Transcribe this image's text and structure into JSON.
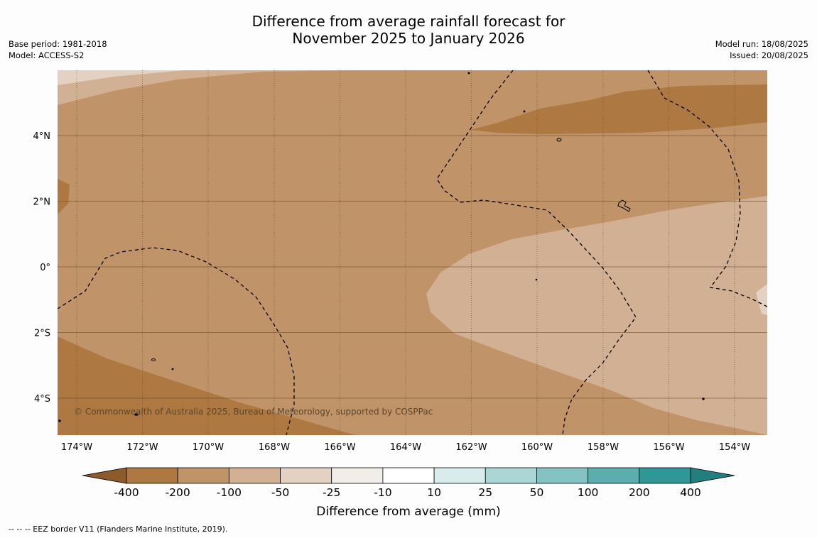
{
  "title": {
    "line1": "Difference from average rainfall forecast for",
    "line2": "November 2025 to January 2026"
  },
  "meta_left": {
    "base_period": "Base period: 1981-2018",
    "model": "Model: ACCESS-S2"
  },
  "meta_right": {
    "model_run": "Model run: 18/08/2025",
    "issued": "Issued: 20/08/2025"
  },
  "map": {
    "lat_labels": [
      "4°N",
      "2°N",
      "0°",
      "2°S",
      "4°S"
    ],
    "lon_labels": [
      "174°W",
      "172°W",
      "170°W",
      "168°W",
      "166°W",
      "164°W",
      "162°W",
      "160°W",
      "158°W",
      "156°W",
      "154°W"
    ],
    "copyright": "© Commonwealth of Australia 2025, Bureau of Meteorology, supported by COSPPac"
  },
  "legend": {
    "tick_labels": [
      "-400",
      "-200",
      "-100",
      "-50",
      "-25",
      "-10",
      "10",
      "25",
      "50",
      "100",
      "200",
      "400"
    ],
    "colors": [
      "#ad7841",
      "#c09368",
      "#d2b093",
      "#e3d1c2",
      "#f1eeea",
      "#ffffff",
      "#d8ecec",
      "#acd6d6",
      "#85c2c2",
      "#5baeac",
      "#2f9896"
    ],
    "extend_low_color": "#8c5a2b",
    "extend_high_color": "#237f7d",
    "title": "Difference from average (mm)"
  },
  "footnote": "-- -- -- EEZ border V11 (Flanders Marine Institute, 2019)."
}
